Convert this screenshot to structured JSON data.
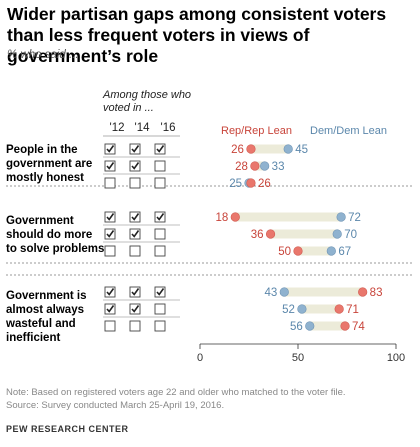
{
  "title": "Wider partisan gaps among consistent voters than less frequent voters in views of government’s role",
  "subtitle": "% who said ...",
  "table_header": {
    "among": "Among those who voted in ...",
    "years": [
      "'12",
      "'14",
      "'16"
    ]
  },
  "legend": {
    "rep": "Rep/Rep Lean",
    "dem": "Dem/Dem Lean"
  },
  "colors": {
    "rep": "#e9776c",
    "dem": "#8fb2cf",
    "rep_text": "#c8443a",
    "dem_text": "#5b87ab",
    "bar": "#ecebd9"
  },
  "chart_data": {
    "type": "dot",
    "xlim": [
      0,
      100
    ],
    "x_ticks": [
      0,
      50,
      100
    ],
    "series": [
      {
        "name": "Rep/Rep Lean"
      },
      {
        "name": "Dem/Dem Lean"
      }
    ],
    "groups": [
      {
        "label": "People in the government are mostly honest",
        "rows": [
          {
            "voted": [
              true,
              true,
              true
            ],
            "rep": 26,
            "dem": 45
          },
          {
            "voted": [
              true,
              true,
              false
            ],
            "rep": 28,
            "dem": 33
          },
          {
            "voted": [
              false,
              false,
              false
            ],
            "rep": 26,
            "dem": 25
          }
        ]
      },
      {
        "label": "Government should do more to solve problems",
        "rows": [
          {
            "voted": [
              true,
              true,
              true
            ],
            "rep": 18,
            "dem": 72
          },
          {
            "voted": [
              true,
              true,
              false
            ],
            "rep": 36,
            "dem": 70
          },
          {
            "voted": [
              false,
              false,
              false
            ],
            "rep": 50,
            "dem": 67
          }
        ]
      },
      {
        "label": "Government is almost always wasteful and inefficient",
        "rows": [
          {
            "voted": [
              true,
              true,
              true
            ],
            "rep": 83,
            "dem": 43
          },
          {
            "voted": [
              true,
              true,
              false
            ],
            "rep": 71,
            "dem": 52
          },
          {
            "voted": [
              false,
              false,
              false
            ],
            "rep": 74,
            "dem": 56
          }
        ]
      }
    ]
  },
  "footer": {
    "note": "Note: Based on registered voters age 22 and older who matched to the voter file.",
    "source": "Source: Survey conducted March 25-April 19, 2016."
  },
  "brand": "PEW RESEARCH CENTER"
}
